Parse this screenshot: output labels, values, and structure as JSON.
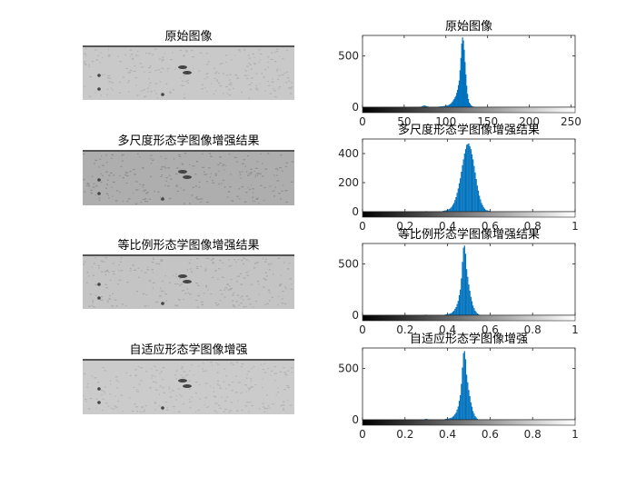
{
  "figure": {
    "left_images": [
      {
        "title": "原始图像",
        "shade": "#c9c9c9",
        "speckle": "#b2b2b2"
      },
      {
        "title": "多尺度形态学图像增强结果",
        "shade": "#aeaeae",
        "speckle": "#8f8f8f"
      },
      {
        "title": "等比例形态学图像增强结果",
        "shade": "#c4c4c4",
        "speckle": "#a9a9a9"
      },
      {
        "title": "自适应形态学图像增强",
        "shade": "#cbcbcb",
        "speckle": "#b4b4b4"
      }
    ]
  },
  "chart_data": [
    {
      "type": "bar",
      "title": "原始图像",
      "xlim": [
        0,
        255
      ],
      "ylim": [
        0,
        700
      ],
      "xticks": [
        0,
        50,
        100,
        150,
        200,
        250
      ],
      "xtick_labels": [
        "0",
        "50",
        "100",
        "150",
        "200",
        "250"
      ],
      "yticks": [
        0,
        500
      ],
      "ytick_labels": [
        "0",
        "500"
      ],
      "bar_color": "#0072BD",
      "colorbar": "gray",
      "x": [
        60,
        70,
        74,
        80,
        90,
        96,
        100,
        104,
        106,
        108,
        110,
        112,
        114,
        116,
        117,
        118,
        119,
        120,
        121,
        122,
        123,
        124,
        125,
        126,
        127,
        128,
        130,
        132,
        134,
        140
      ],
      "values": [
        2,
        5,
        18,
        3,
        4,
        10,
        14,
        25,
        35,
        55,
        80,
        110,
        170,
        260,
        360,
        480,
        620,
        680,
        650,
        560,
        440,
        320,
        210,
        130,
        80,
        45,
        20,
        8,
        3,
        1
      ]
    },
    {
      "type": "bar",
      "title": "多尺度形态学图像增强结果",
      "xlim": [
        0,
        1
      ],
      "ylim": [
        0,
        500
      ],
      "xticks": [
        0,
        0.2,
        0.4,
        0.6,
        0.8,
        1
      ],
      "xtick_labels": [
        "0",
        "0.2",
        "0.4",
        "0.6",
        "0.8",
        "1"
      ],
      "yticks": [
        0,
        200,
        400
      ],
      "ytick_labels": [
        "0",
        "200",
        "400"
      ],
      "bar_color": "#0072BD",
      "colorbar": "gray",
      "x": [
        0.3,
        0.38,
        0.4,
        0.41,
        0.42,
        0.43,
        0.44,
        0.45,
        0.46,
        0.47,
        0.48,
        0.49,
        0.5,
        0.51,
        0.52,
        0.53,
        0.54,
        0.55,
        0.56,
        0.57,
        0.58,
        0.6
      ],
      "values": [
        4,
        6,
        12,
        20,
        35,
        60,
        100,
        160,
        230,
        320,
        400,
        460,
        470,
        430,
        360,
        270,
        180,
        110,
        60,
        30,
        12,
        4
      ]
    },
    {
      "type": "bar",
      "title": "等比例形态学图像增强结果",
      "xlim": [
        0,
        1
      ],
      "ylim": [
        0,
        700
      ],
      "xticks": [
        0,
        0.2,
        0.4,
        0.6,
        0.8,
        1
      ],
      "xtick_labels": [
        "0",
        "0.2",
        "0.4",
        "0.6",
        "0.8",
        "1"
      ],
      "yticks": [
        0,
        500
      ],
      "ytick_labels": [
        "0",
        "500"
      ],
      "bar_color": "#0072BD",
      "colorbar": "gray",
      "x": [
        0.29,
        0.3,
        0.39,
        0.41,
        0.42,
        0.43,
        0.44,
        0.45,
        0.46,
        0.465,
        0.47,
        0.475,
        0.48,
        0.485,
        0.49,
        0.5,
        0.51,
        0.52,
        0.53,
        0.54,
        0.55
      ],
      "values": [
        4,
        6,
        8,
        15,
        25,
        45,
        80,
        140,
        250,
        360,
        520,
        660,
        680,
        600,
        450,
        300,
        180,
        95,
        45,
        18,
        6
      ]
    },
    {
      "type": "bar",
      "title": "自适应形态学图像增强",
      "xlim": [
        0,
        1
      ],
      "ylim": [
        0,
        700
      ],
      "xticks": [
        0,
        0.2,
        0.4,
        0.6,
        0.8,
        1
      ],
      "xtick_labels": [
        "0",
        "0.2",
        "0.4",
        "0.6",
        "0.8",
        "1"
      ],
      "yticks": [
        0,
        500
      ],
      "ytick_labels": [
        "0",
        "500"
      ],
      "bar_color": "#0072BD",
      "colorbar": "gray",
      "x": [
        0.29,
        0.3,
        0.31,
        0.39,
        0.41,
        0.42,
        0.43,
        0.44,
        0.45,
        0.46,
        0.465,
        0.47,
        0.475,
        0.48,
        0.485,
        0.49,
        0.5,
        0.51,
        0.52,
        0.53,
        0.54
      ],
      "values": [
        4,
        10,
        4,
        8,
        14,
        22,
        40,
        70,
        130,
        240,
        350,
        510,
        650,
        670,
        590,
        440,
        290,
        170,
        85,
        35,
        10
      ]
    }
  ]
}
